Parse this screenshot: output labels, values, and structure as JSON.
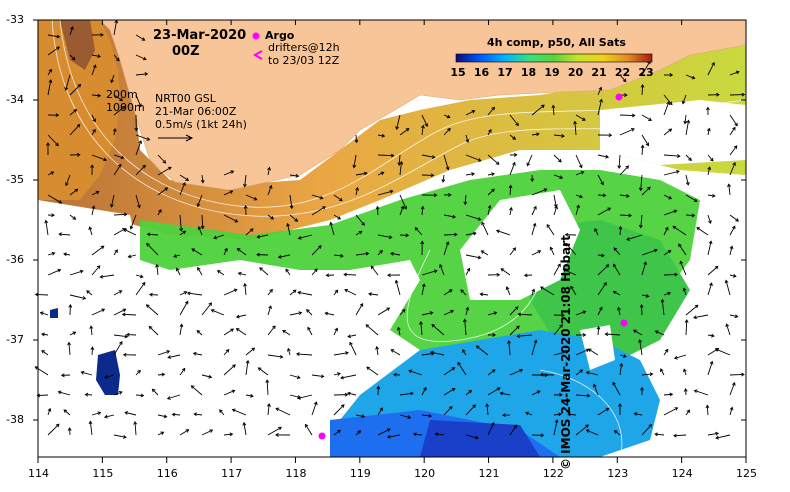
{
  "map": {
    "date": "23-Mar-2020",
    "time": "00Z",
    "argo_label": "Argo",
    "drifters_label": "drifters@12h",
    "drifters_to": "to 23/03 12Z",
    "depth_200": "200m",
    "depth_1000": "1000m",
    "product": "NRT00 GSL",
    "product_time": "21-Mar 06:00Z",
    "scale_label": "0.5m/s (1kt 24h)",
    "colorbar_title": "4h comp, p50, All Sats",
    "colorbar_ticks": [
      "15",
      "16",
      "17",
      "18",
      "19",
      "20",
      "21",
      "22",
      "23"
    ],
    "credit": "© IMOS 24-Mar-2020 21:08 Hobart",
    "lon_ticks": [
      "114",
      "115",
      "116",
      "117",
      "118",
      "119",
      "120",
      "121",
      "122",
      "123",
      "124",
      "125"
    ],
    "lat_ticks": [
      "-33",
      "-34",
      "-35",
      "-36",
      "-37",
      "-38"
    ],
    "colors": {
      "land": "#F7C597",
      "sst_cold": "#1E90FF",
      "sst_warm": "#C0602A",
      "argo": "#FF00FF"
    }
  }
}
